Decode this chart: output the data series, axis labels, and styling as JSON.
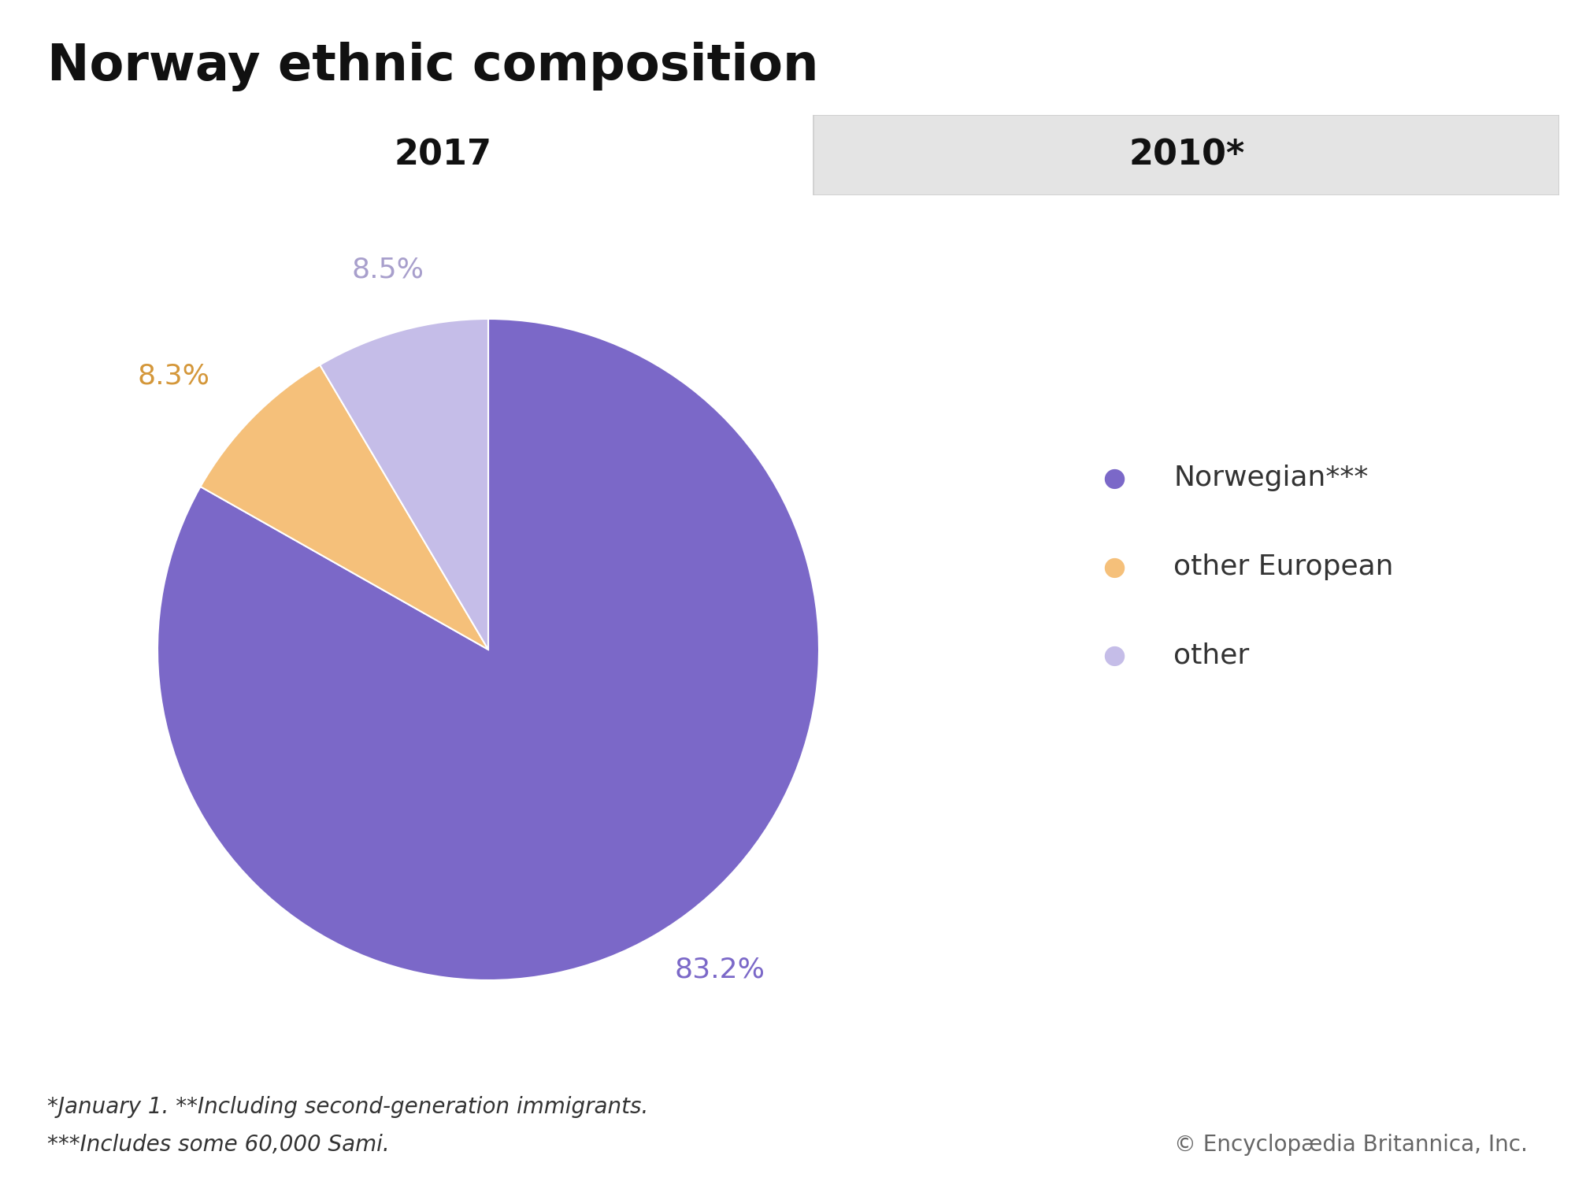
{
  "title": "Norway ethnic composition",
  "slices": [
    83.2,
    8.3,
    8.5
  ],
  "labels": [
    "Norwegian***",
    "other European",
    "other"
  ],
  "colors": [
    "#7B68C8",
    "#F5C07A",
    "#C5BDE8"
  ],
  "pct_labels": [
    "83.2%",
    "8.3%",
    "8.5%"
  ],
  "pct_colors": [
    "#7B68C8",
    "#D4973A",
    "#A89FCC"
  ],
  "tab_2017": "2017",
  "tab_2010": "2010*",
  "footnote1": "*January 1. **Including second-generation immigrants.",
  "footnote2": "***Includes some 60,000 Sami.",
  "copyright": "© Encyclopædia Britannica, Inc.",
  "background_color": "#ffffff",
  "tab_bg_2010": "#e4e4e4",
  "tab_bg_2017": "#ffffff",
  "legend_dot_colors": [
    "#7B68C8",
    "#F5C07A",
    "#C5BDE8"
  ],
  "legend_text_color": "#333333",
  "footnote_color": "#333333",
  "copyright_color": "#666666"
}
